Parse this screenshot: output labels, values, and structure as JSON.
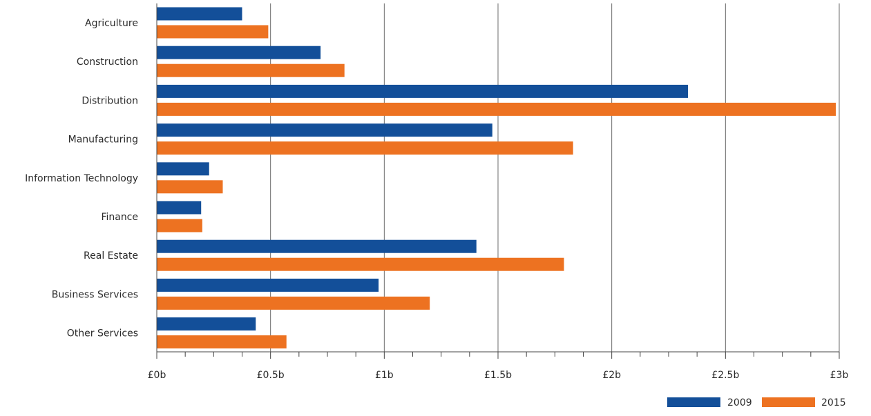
{
  "chart_data": {
    "type": "bar",
    "orientation": "horizontal",
    "categories": [
      "Agriculture",
      "Construction",
      "Distribution",
      "Manufacturing",
      "Information Technology",
      "Finance",
      "Real Estate",
      "Business Services",
      "Other Services"
    ],
    "series": [
      {
        "name": "2009",
        "color": "#134f99",
        "values": [
          0.375,
          0.72,
          2.335,
          1.475,
          0.23,
          0.195,
          1.405,
          0.975,
          0.435
        ]
      },
      {
        "name": "2015",
        "color": "#ed7221",
        "values": [
          0.49,
          0.825,
          2.985,
          1.83,
          0.29,
          0.2,
          1.79,
          1.2,
          0.57
        ]
      }
    ],
    "xlim": [
      0,
      3
    ],
    "xticks": [
      {
        "value": 0,
        "label": "£0b"
      },
      {
        "value": 0.5,
        "label": "£0.5b"
      },
      {
        "value": 1,
        "label": "£1b"
      },
      {
        "value": 1.5,
        "label": "£1.5b"
      },
      {
        "value": 2,
        "label": "£2b"
      },
      {
        "value": 2.5,
        "label": "£2.5b"
      },
      {
        "value": 3,
        "label": "£3b"
      }
    ],
    "minor_tick_step": 0.125,
    "grid": true,
    "legend_position": "bottom-right",
    "title": "",
    "xlabel": "",
    "ylabel": ""
  }
}
